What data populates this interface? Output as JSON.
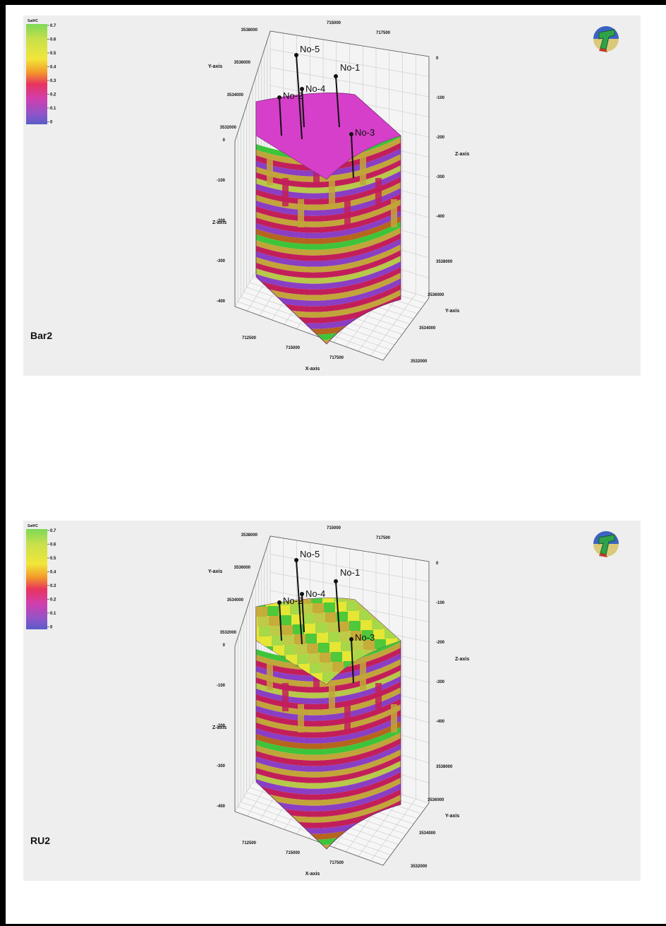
{
  "panels": [
    {
      "label": "Bar2",
      "legend": {
        "title": "SatHC",
        "ticks": [
          "0.7",
          "0.6",
          "0.5",
          "0.4",
          "0.3",
          "0.2",
          "0.1",
          "0"
        ]
      },
      "top_surface": "magenta",
      "axes": {
        "x_ticks": [
          "712500",
          "715000",
          "717500"
        ],
        "x_name": "X-axis",
        "x_top_ticks": [
          "715000",
          "717500"
        ],
        "y_left_ticks": [
          "3538000",
          "3536000",
          "3534000",
          "3532000"
        ],
        "y_left_name": "Y-axis",
        "y_right_ticks": [
          "3538000",
          "3536000",
          "3534000",
          "3532000"
        ],
        "y_right_name": "Y-axis",
        "z_left_ticks": [
          "0",
          "-100",
          "-200",
          "-300",
          "-400"
        ],
        "z_left_name": "Z-axis",
        "z_right_ticks": [
          "0",
          "-100",
          "-200",
          "-300",
          "-400"
        ],
        "z_right_name": "Z-axis"
      },
      "wells": [
        "No-5",
        "No-1",
        "No-4",
        "No-2",
        "No-3"
      ]
    },
    {
      "label": "RU2",
      "legend": {
        "title": "SatHC",
        "ticks": [
          "0.7",
          "0.6",
          "0.5",
          "0.4",
          "0.3",
          "0.2",
          "0.1",
          "0"
        ]
      },
      "top_surface": "green-yellow",
      "axes": {
        "x_ticks": [
          "712500",
          "715000",
          "717500"
        ],
        "x_name": "X-axis",
        "x_top_ticks": [
          "715000",
          "717500"
        ],
        "y_left_ticks": [
          "3538000",
          "3536000",
          "3534000",
          "3532000"
        ],
        "y_left_name": "Y-axis",
        "y_right_ticks": [
          "3538000",
          "3536000",
          "3534000",
          "3532000"
        ],
        "y_right_name": "Y-axis",
        "z_left_ticks": [
          "0",
          "-100",
          "-200",
          "-300",
          "-400"
        ],
        "z_left_name": "Z-axis",
        "z_right_ticks": [
          "0",
          "-100",
          "-200",
          "-300",
          "-400"
        ],
        "z_right_name": "Z-axis"
      },
      "wells": [
        "No-5",
        "No-1",
        "No-4",
        "No-2",
        "No-3"
      ]
    }
  ],
  "colors": {
    "panel_bg": "#eeeeee",
    "magenta": "#d63fc9",
    "green": "#3ec43a",
    "yellow_green": "#b8c84a",
    "yellow": "#e6e635",
    "olive": "#c2a53a",
    "crimson": "#c21f5a",
    "purple": "#8a3ec4",
    "brown": "#b5651d"
  }
}
